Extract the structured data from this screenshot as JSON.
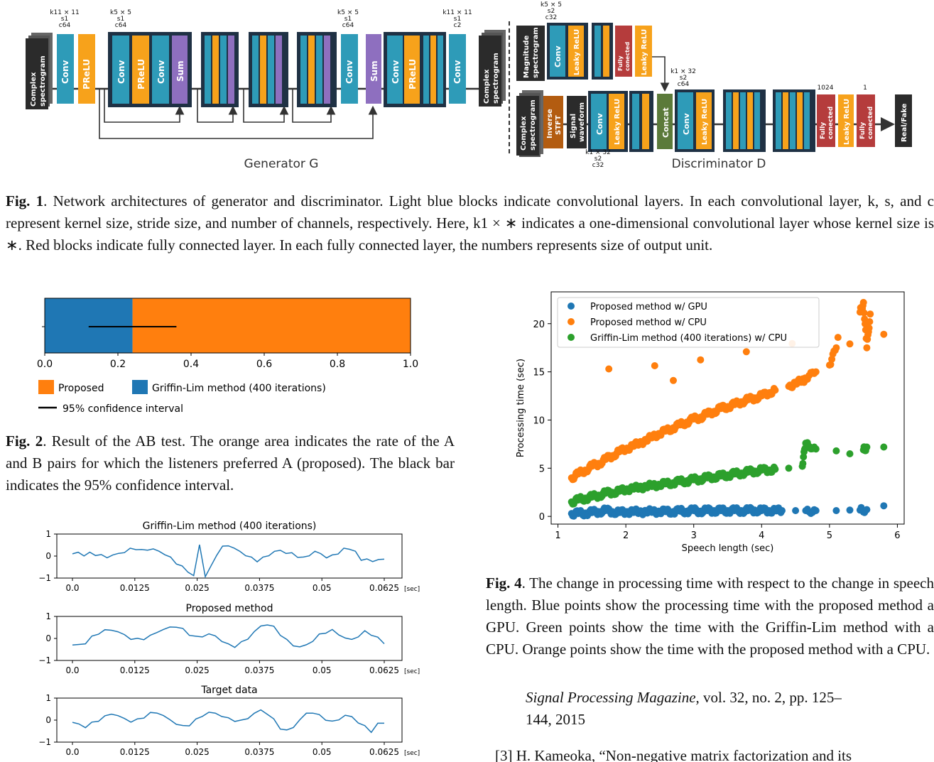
{
  "fig1": {
    "generator": {
      "title": "Generator G",
      "input_label": [
        "Complex",
        "spectrogram"
      ],
      "output_label": [
        "Complex",
        "spectrogram"
      ],
      "conv_params_1": [
        "k11 × 11",
        "s1",
        "c64"
      ],
      "conv_params_2": [
        "k5 × 5",
        "s1",
        "c64"
      ],
      "conv_params_3": [
        "k5 × 5",
        "s1",
        "c64"
      ],
      "conv_params_4": [
        "k11 × 11",
        "s1",
        "c2"
      ],
      "block_labels": {
        "conv": "Conv",
        "prelu": "PReLU",
        "sum": "Sum"
      }
    },
    "discriminator": {
      "title": "Discriminator D",
      "top_params": [
        "k5 × 5",
        "s2",
        "c32"
      ],
      "top_input": [
        "Magnitude",
        "spectrogram"
      ],
      "bottom_input": [
        "Complex",
        "spectrogram"
      ],
      "inverse_stft": [
        "Inverse",
        "STFT"
      ],
      "signal_waveform": [
        "Signal",
        "waveform"
      ],
      "bottom_params": [
        "k1 × 32",
        "s2",
        "c32"
      ],
      "concat_params": [
        "k1 × 32",
        "s2",
        "c64"
      ],
      "fc_units_1": "1024",
      "fc_units_2": "1",
      "block_labels": {
        "conv": "Conv",
        "leaky": "Leaky ReLU",
        "fc": [
          "Fully",
          "conected"
        ],
        "concat": "Concat"
      },
      "output": "Real/Fake"
    },
    "caption_label": "Fig. 1",
    "caption_text": ".   Network architectures of generator and discriminator.  Light blue blocks indicate convolutional layers.  In each convolutional layer, k, s, and c represent kernel size, stride size, and number of channels, respectively. Here, k1 × ∗ indicates a one-dimensional convolutional layer whose kernel size is ∗. Red blocks indicate fully connected layer. In each fully connected layer, the numbers represents size of output unit."
  },
  "fig2": {
    "caption_label": "Fig. 2",
    "caption_text": ".   Result of the AB test.  The orange area indicates the rate of the A and B pairs for which the listeners preferred A (proposed).  The black bar indicates the 95% confidence interval.",
    "chart_data": {
      "type": "bar",
      "orientation": "horizontal-stacked",
      "series": [
        {
          "name": "Griffin-Lim method (400 iterations)",
          "values": [
            0.24
          ],
          "color": "#1f77b4"
        },
        {
          "name": "Proposed",
          "values": [
            0.76
          ],
          "color": "#ff7f0e"
        }
      ],
      "errorbar": {
        "name": "95% confidence interval",
        "low": 0.12,
        "high": 0.36
      },
      "xlim": [
        0,
        1.0
      ],
      "xticks": [
        "0.0",
        "0.2",
        "0.4",
        "0.6",
        "0.8",
        "1.0"
      ],
      "legend": "bottom"
    }
  },
  "fig3": {
    "chart_data": [
      {
        "type": "line",
        "title": "Griffin-Lim method (400 iterations)",
        "ylim": [
          -1,
          1
        ],
        "yticks": [
          "1",
          "0",
          "−1"
        ],
        "xticks": [
          "0.0",
          "0.0125",
          "0.025",
          "0.0375",
          "0.05",
          "0.0625"
        ],
        "xunit": "[sec]",
        "series": [
          {
            "x_range": [
              0,
              0.0625
            ],
            "y": [
              0.1,
              0.15,
              0.05,
              0.12,
              0.08,
              0.02,
              -0.05,
              0.05,
              0.1,
              0.2,
              0.3,
              0.35,
              0.25,
              0.3,
              0.32,
              0.2,
              0.1,
              -0.1,
              -0.3,
              -0.5,
              -0.7,
              -0.9,
              0.5,
              -0.9,
              -0.5,
              0.1,
              0.4,
              0.5,
              0.35,
              0.2,
              0.05,
              -0.1,
              -0.2,
              -0.1,
              0.05,
              0.2,
              0.25,
              0.15,
              0.1,
              0.0,
              -0.1,
              0.05,
              0.2,
              0.1,
              -0.05,
              0.0,
              0.15,
              0.3,
              0.35,
              0.2,
              -0.2,
              -0.1,
              -0.3,
              -0.1,
              -0.2
            ]
          }
        ]
      },
      {
        "type": "line",
        "title": "Proposed method",
        "ylim": [
          -1,
          1
        ],
        "yticks": [
          "1",
          "0",
          "−1"
        ],
        "xticks": [
          "0.0",
          "0.0125",
          "0.025",
          "0.0375",
          "0.05",
          "0.0625"
        ],
        "xunit": "[sec]",
        "series": [
          {
            "x_range": [
              0,
              0.0625
            ],
            "y": [
              -0.3,
              -0.3,
              -0.2,
              0.05,
              0.25,
              0.35,
              0.4,
              0.3,
              0.15,
              0.0,
              -0.05,
              0.0,
              0.1,
              0.3,
              0.4,
              0.5,
              0.55,
              0.4,
              0.2,
              0.05,
              0.1,
              0.2,
              0.1,
              -0.1,
              -0.3,
              -0.35,
              -0.2,
              0.0,
              0.3,
              0.55,
              0.65,
              0.5,
              0.2,
              -0.1,
              -0.3,
              -0.4,
              -0.3,
              -0.1,
              0.15,
              0.3,
              0.35,
              0.2,
              0.0,
              -0.05,
              0.1,
              0.3,
              0.2,
              0.0,
              -0.2
            ]
          }
        ]
      },
      {
        "type": "line",
        "title": "Target data",
        "ylim": [
          -1,
          1
        ],
        "yticks": [
          "1",
          "0",
          "−1"
        ],
        "xticks": [
          "0.0",
          "0.0125",
          "0.025",
          "0.0375",
          "0.05",
          "0.0625"
        ],
        "xunit": "[sec]",
        "series": [
          {
            "x_range": [
              0,
              0.0625
            ],
            "y": [
              -0.1,
              -0.2,
              -0.3,
              -0.15,
              0.0,
              0.15,
              0.3,
              0.2,
              0.05,
              -0.05,
              0.0,
              0.15,
              0.3,
              0.35,
              0.2,
              0.0,
              -0.15,
              -0.3,
              -0.2,
              0.0,
              0.2,
              0.35,
              0.3,
              0.2,
              0.05,
              0.0,
              -0.05,
              0.1,
              0.3,
              0.45,
              0.3,
              0.0,
              -0.35,
              -0.5,
              -0.3,
              0.0,
              0.3,
              0.35,
              0.2,
              0.05,
              -0.1,
              0.05,
              0.2,
              0.15,
              -0.1,
              -0.3,
              -0.5,
              -0.2,
              -0.1
            ]
          }
        ]
      }
    ]
  },
  "fig4": {
    "caption_label": "Fig. 4",
    "caption_text": ".   The change in processing time with respect to the change in speech length.  Blue points show the processing time with the proposed method a GPU. Green points show the time with the Griffin-Lim method with a CPU. Orange points show the time with the proposed method with a CPU.",
    "chart_data": {
      "type": "scatter",
      "xlabel": "Speech length  (sec)",
      "ylabel": "Processing time  (sec)",
      "xlim": [
        0.9,
        6.1
      ],
      "ylim": [
        -0.8,
        23.3
      ],
      "xticks": [
        "1",
        "2",
        "3",
        "4",
        "5",
        "6"
      ],
      "yticks": [
        "0",
        "5",
        "10",
        "15",
        "20"
      ],
      "legend": "top-left",
      "series": [
        {
          "name": "Proposed method w/ GPU",
          "color": "#1f77b4",
          "x": [
            1.2,
            1.3,
            1.4,
            1.5,
            1.6,
            1.7,
            1.8,
            1.9,
            2.0,
            2.1,
            2.2,
            2.3,
            2.4,
            2.5,
            2.6,
            2.7,
            2.8,
            2.9,
            3.0,
            3.1,
            3.2,
            3.3,
            3.4,
            3.5,
            3.6,
            3.7,
            3.8,
            3.9,
            4.0,
            4.1,
            4.2,
            4.3,
            4.5,
            4.65,
            4.8,
            5.1,
            5.3,
            5.45,
            5.55,
            5.8
          ],
          "y": [
            0.3,
            0.3,
            0.35,
            0.4,
            0.5,
            0.6,
            0.5,
            0.4,
            0.45,
            0.5,
            0.45,
            0.5,
            0.5,
            0.5,
            0.5,
            0.5,
            0.55,
            0.55,
            0.6,
            0.55,
            0.6,
            0.6,
            0.6,
            0.6,
            0.6,
            0.6,
            0.6,
            0.65,
            0.6,
            0.6,
            0.6,
            0.6,
            0.6,
            0.6,
            0.6,
            0.6,
            0.65,
            0.65,
            0.7,
            1.1
          ]
        },
        {
          "name": "Proposed method w/ CPU",
          "color": "#ff7f0e",
          "x": [
            1.2,
            1.3,
            1.4,
            1.5,
            1.6,
            1.7,
            1.8,
            1.9,
            2.0,
            2.1,
            2.2,
            2.3,
            2.4,
            2.5,
            2.6,
            2.7,
            2.8,
            2.9,
            3.0,
            3.1,
            3.2,
            3.3,
            3.4,
            3.5,
            3.6,
            3.7,
            3.8,
            3.9,
            4.0,
            4.1,
            4.2,
            4.4,
            4.5,
            4.6,
            4.65,
            4.8,
            5.0,
            5.1,
            5.3,
            5.45,
            5.5,
            5.55,
            5.6,
            5.8,
            1.75,
            2.7
          ],
          "y": [
            4.0,
            4.4,
            4.8,
            5.2,
            5.5,
            5.9,
            6.3,
            6.7,
            7.0,
            7.3,
            7.6,
            7.9,
            8.3,
            8.6,
            8.9,
            9.2,
            9.5,
            9.8,
            10.1,
            10.3,
            10.6,
            10.9,
            11.2,
            11.4,
            11.6,
            11.9,
            12.1,
            12.3,
            12.5,
            12.8,
            13.1,
            13.5,
            13.8,
            14.1,
            14.3,
            15.0,
            15.7,
            17.5,
            17.9,
            21.2,
            22.2,
            17.5,
            21.0,
            18.9,
            15.3,
            14.1
          ]
        },
        {
          "name": "Griffin-Lim method (400 iterations) w/ CPU",
          "color": "#2ca02c",
          "x": [
            1.2,
            1.3,
            1.4,
            1.5,
            1.6,
            1.7,
            1.8,
            1.9,
            2.0,
            2.1,
            2.2,
            2.3,
            2.4,
            2.5,
            2.6,
            2.7,
            2.8,
            2.9,
            3.0,
            3.1,
            3.2,
            3.3,
            3.4,
            3.5,
            3.6,
            3.7,
            3.8,
            3.9,
            4.0,
            4.1,
            4.2,
            4.4,
            4.6,
            4.65,
            4.8,
            5.1,
            5.3,
            5.5,
            5.55,
            5.8
          ],
          "y": [
            1.5,
            1.7,
            1.9,
            2.0,
            2.2,
            2.4,
            2.5,
            2.6,
            2.8,
            2.9,
            3.0,
            3.1,
            3.2,
            3.3,
            3.4,
            3.5,
            3.6,
            3.7,
            3.8,
            3.9,
            4.0,
            4.1,
            4.2,
            4.3,
            4.4,
            4.5,
            4.6,
            4.7,
            4.8,
            4.8,
            4.9,
            5.0,
            5.2,
            7.6,
            7.0,
            6.8,
            6.5,
            6.9,
            7.2,
            7.2
          ]
        }
      ]
    }
  },
  "references": {
    "continuation_venue": "Signal Processing Magazine",
    "continuation_rest": ", vol. 32, no. 2, pp. 125–",
    "continuation_line2": "144, 2015",
    "ref3": "[3]  H. Kameoka, “Non-negative matrix factorization and its"
  }
}
